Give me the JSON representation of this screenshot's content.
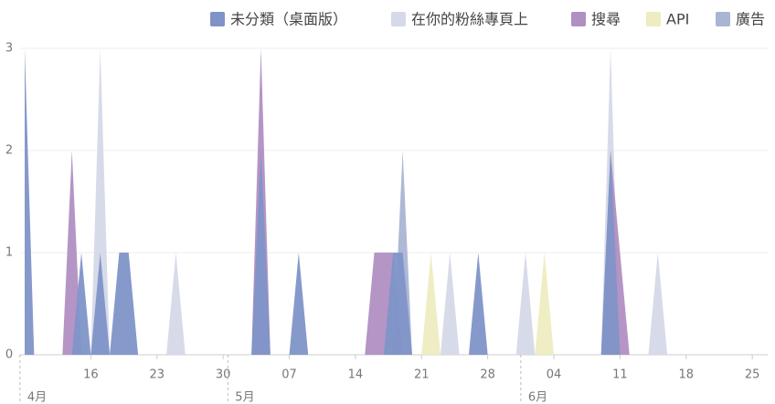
{
  "chart_data": {
    "type": "area",
    "x": [
      "04-09",
      "04-10",
      "04-11",
      "04-12",
      "04-13",
      "04-14",
      "04-15",
      "04-16",
      "04-17",
      "04-18",
      "04-19",
      "04-20",
      "04-21",
      "04-22",
      "04-23",
      "04-24",
      "04-25",
      "04-26",
      "04-27",
      "04-28",
      "04-29",
      "04-30",
      "05-01",
      "05-02",
      "05-03",
      "05-04",
      "05-05",
      "05-06",
      "05-07",
      "05-08",
      "05-09",
      "05-10",
      "05-11",
      "05-12",
      "05-13",
      "05-14",
      "05-15",
      "05-16",
      "05-17",
      "05-18",
      "05-19",
      "05-20",
      "05-21",
      "05-22",
      "05-23",
      "05-24",
      "05-25",
      "05-26",
      "05-27",
      "05-28",
      "05-29",
      "05-30",
      "05-31",
      "06-01",
      "06-02",
      "06-03",
      "06-04",
      "06-05",
      "06-06",
      "06-07",
      "06-08",
      "06-09",
      "06-10",
      "06-11",
      "06-12",
      "06-13",
      "06-14",
      "06-15",
      "06-16",
      "06-17",
      "06-18",
      "06-19",
      "06-20",
      "06-21",
      "06-22",
      "06-23",
      "06-24",
      "06-25",
      "06-26"
    ],
    "series": [
      {
        "name": "未分類（桌面版）",
        "color": "#7f93c8",
        "values": [
          3,
          0,
          0,
          0,
          0,
          0,
          1,
          0,
          1,
          0,
          1,
          1,
          0,
          0,
          0,
          0,
          0,
          0,
          0,
          0,
          0,
          0,
          0,
          0,
          0,
          2,
          0,
          0,
          0,
          1,
          0,
          0,
          0,
          0,
          0,
          0,
          0,
          0,
          0,
          1,
          1,
          0,
          0,
          0,
          0,
          0,
          0,
          0,
          1,
          0,
          0,
          0,
          0,
          0,
          0,
          0,
          0,
          0,
          0,
          0,
          0,
          0,
          2,
          0,
          0,
          0,
          0,
          0,
          0,
          0,
          0,
          0,
          0,
          0,
          0,
          0,
          0,
          0,
          0
        ]
      },
      {
        "name": "在你的粉絲專頁上",
        "color": "#d5d9e8",
        "values": [
          0,
          0,
          0,
          0,
          0,
          0,
          0,
          0,
          3,
          0,
          0,
          0,
          0,
          0,
          0,
          0,
          1,
          0,
          0,
          0,
          0,
          0,
          0,
          0,
          0,
          0,
          0,
          0,
          0,
          0,
          0,
          0,
          0,
          0,
          0,
          0,
          0,
          0,
          0,
          0,
          0,
          0,
          0,
          0,
          0,
          1,
          0,
          0,
          0,
          0,
          0,
          0,
          0,
          1,
          0,
          0,
          0,
          0,
          0,
          0,
          0,
          0,
          3,
          0,
          0,
          0,
          0,
          1,
          0,
          0,
          0,
          0,
          0,
          0,
          0,
          0,
          0,
          0,
          0
        ]
      },
      {
        "name": "搜尋",
        "color": "#b08fc2",
        "values": [
          0,
          0,
          0,
          0,
          0,
          2,
          0,
          0,
          0,
          0,
          0,
          0,
          0,
          0,
          0,
          0,
          0,
          0,
          0,
          0,
          0,
          0,
          0,
          0,
          0,
          3,
          0,
          0,
          0,
          0,
          0,
          0,
          0,
          0,
          0,
          0,
          0,
          1,
          1,
          1,
          0,
          0,
          0,
          0,
          0,
          0,
          0,
          0,
          0,
          0,
          0,
          0,
          0,
          0,
          0,
          0,
          0,
          0,
          0,
          0,
          0,
          0,
          2,
          1,
          0,
          0,
          0,
          0,
          0,
          0,
          0,
          0,
          0,
          0,
          0,
          0,
          0,
          0,
          0
        ]
      },
      {
        "name": "API",
        "color": "#eeecc0",
        "values": [
          0,
          0,
          0,
          0,
          0,
          0,
          0,
          0,
          0,
          0,
          0,
          0,
          0,
          0,
          0,
          0,
          0,
          0,
          0,
          0,
          0,
          0,
          0,
          0,
          0,
          0,
          0,
          0,
          0,
          0,
          0,
          0,
          0,
          0,
          0,
          0,
          0,
          0,
          0,
          0,
          0,
          0,
          0,
          1,
          0,
          0,
          0,
          0,
          0,
          0,
          0,
          0,
          0,
          0,
          0,
          1,
          0,
          0,
          0,
          0,
          0,
          0,
          0,
          0,
          0,
          0,
          0,
          0,
          0,
          0,
          0,
          0,
          0,
          0,
          0,
          0,
          0,
          0,
          0
        ]
      },
      {
        "name": "廣告",
        "color": "#a9b5d3",
        "values": [
          0,
          0,
          0,
          0,
          0,
          0,
          0,
          0,
          0,
          0,
          0,
          0,
          0,
          0,
          0,
          0,
          0,
          0,
          0,
          0,
          0,
          0,
          0,
          0,
          0,
          0,
          0,
          0,
          0,
          0,
          0,
          0,
          0,
          0,
          0,
          0,
          0,
          0,
          0,
          0,
          2,
          0,
          0,
          0,
          0,
          0,
          0,
          0,
          0,
          0,
          0,
          0,
          0,
          0,
          0,
          0,
          0,
          0,
          0,
          0,
          0,
          0,
          0,
          0,
          0,
          0,
          0,
          0,
          0,
          0,
          0,
          0,
          0,
          0,
          0,
          0,
          0,
          0,
          0
        ]
      }
    ],
    "xticks": [
      {
        "value": "04-16",
        "label": "16"
      },
      {
        "value": "04-23",
        "label": "23"
      },
      {
        "value": "04-30",
        "label": "30"
      },
      {
        "value": "05-07",
        "label": "07"
      },
      {
        "value": "05-14",
        "label": "14"
      },
      {
        "value": "05-21",
        "label": "21"
      },
      {
        "value": "05-28",
        "label": "28"
      },
      {
        "value": "06-04",
        "label": "04"
      },
      {
        "value": "06-11",
        "label": "11"
      },
      {
        "value": "06-18",
        "label": "18"
      },
      {
        "value": "06-25",
        "label": "25"
      }
    ],
    "month_labels": [
      {
        "value": "04-09",
        "label": "4月"
      },
      {
        "value": "05-01",
        "label": "5月"
      },
      {
        "value": "06-01",
        "label": "6月"
      }
    ],
    "ylim": [
      0,
      3
    ],
    "yticks": [
      0,
      1,
      2,
      3
    ],
    "grid": true,
    "legend": "top-right"
  }
}
